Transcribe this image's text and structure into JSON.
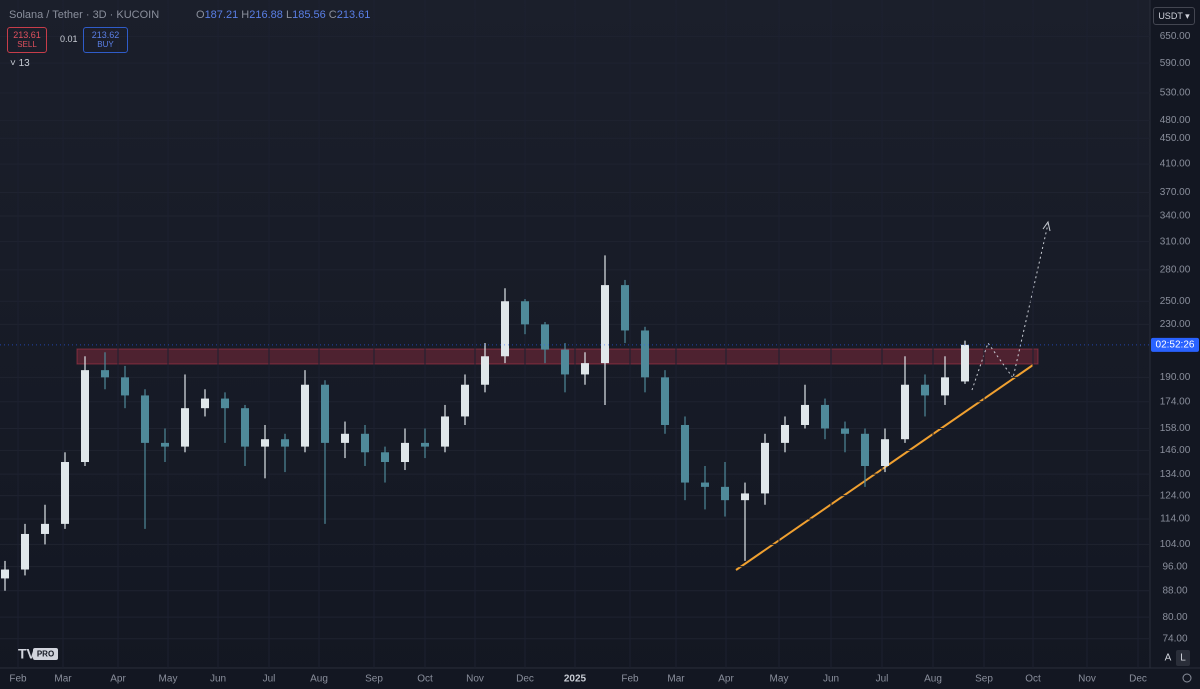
{
  "chart_data": {
    "type": "candlestick",
    "title": "Solana / Tether · 3D · KUCOIN",
    "x": [
      1,
      5,
      9,
      13,
      17,
      21,
      25,
      29,
      33,
      37,
      41,
      45,
      49,
      53,
      57,
      61,
      65,
      69,
      73,
      77,
      81,
      85,
      89,
      93,
      97,
      101,
      105,
      109,
      113,
      117,
      121,
      125,
      129,
      133,
      137,
      141,
      145,
      149,
      153,
      157,
      161,
      165,
      169,
      173,
      177,
      181,
      185,
      189,
      193
    ],
    "open": [
      92,
      95,
      108,
      112,
      140,
      195,
      190,
      178,
      150,
      148,
      170,
      176,
      170,
      148,
      152,
      148,
      185,
      150,
      155,
      145,
      140,
      150,
      148,
      165,
      185,
      205,
      250,
      230,
      210,
      192,
      200,
      265,
      225,
      190,
      160,
      130,
      128,
      122,
      125,
      150,
      160,
      172,
      158,
      155,
      138,
      152,
      185,
      178,
      187.21
    ],
    "high": [
      98,
      112,
      120,
      145,
      205,
      208,
      198,
      182,
      158,
      192,
      182,
      180,
      172,
      160,
      155,
      195,
      188,
      162,
      160,
      148,
      158,
      158,
      172,
      192,
      215,
      262,
      252,
      232,
      215,
      208,
      295,
      270,
      228,
      195,
      165,
      138,
      140,
      130,
      155,
      165,
      185,
      176,
      162,
      158,
      158,
      205,
      192,
      205,
      216.88
    ],
    "low": [
      88,
      93,
      104,
      110,
      138,
      182,
      170,
      110,
      140,
      145,
      165,
      150,
      138,
      132,
      135,
      145,
      112,
      142,
      138,
      130,
      136,
      142,
      145,
      160,
      180,
      200,
      222,
      200,
      180,
      185,
      172,
      215,
      180,
      155,
      122,
      118,
      115,
      98,
      120,
      145,
      158,
      152,
      145,
      128,
      135,
      150,
      165,
      172,
      185.56
    ],
    "close": [
      95,
      108,
      112,
      140,
      195,
      190,
      178,
      150,
      148,
      170,
      176,
      170,
      148,
      152,
      148,
      185,
      150,
      155,
      145,
      140,
      150,
      148,
      165,
      185,
      205,
      250,
      230,
      210,
      192,
      200,
      265,
      225,
      190,
      160,
      130,
      128,
      122,
      125,
      150,
      160,
      172,
      158,
      155,
      138,
      152,
      185,
      178,
      190,
      213.61
    ],
    "up_color": "#dfe6ea",
    "down_color": "#4f8a9a",
    "xlim": [
      0,
      230
    ],
    "xticks": [
      {
        "value": 3.6,
        "label": "Feb"
      },
      {
        "value": 12.6,
        "label": "Mar"
      },
      {
        "value": 23.6,
        "label": "Apr"
      },
      {
        "value": 33.6,
        "label": "May"
      },
      {
        "value": 43.6,
        "label": "Jun"
      },
      {
        "value": 53.8,
        "label": "Jul"
      },
      {
        "value": 63.8,
        "label": "Aug"
      },
      {
        "value": 74.8,
        "label": "Sep"
      },
      {
        "value": 85,
        "label": "Oct"
      },
      {
        "value": 95,
        "label": "Nov"
      },
      {
        "value": 105,
        "label": "Dec"
      },
      {
        "value": 115,
        "label": "2025"
      },
      {
        "value": 126,
        "label": "Feb"
      },
      {
        "value": 135.2,
        "label": "Mar"
      },
      {
        "value": 145.2,
        "label": "Apr"
      },
      {
        "value": 155.8,
        "label": "May"
      },
      {
        "value": 166.2,
        "label": "Jun"
      },
      {
        "value": 176.4,
        "label": "Jul"
      },
      {
        "value": 186.6,
        "label": "Aug"
      },
      {
        "value": 196.8,
        "label": "Sep"
      },
      {
        "value": 206.6,
        "label": "Oct"
      },
      {
        "value": 217.4,
        "label": "Nov"
      },
      {
        "value": 227.6,
        "label": "Dec"
      }
    ],
    "ylim": [
      66.6,
      741
    ],
    "log_scale": true,
    "yticks": [
      {
        "value": 650,
        "label": "650.00"
      },
      {
        "value": 590,
        "label": "590.00"
      },
      {
        "value": 530,
        "label": "530.00"
      },
      {
        "value": 480,
        "label": "480.00"
      },
      {
        "value": 450,
        "label": "450.00"
      },
      {
        "value": 410,
        "label": "410.00"
      },
      {
        "value": 370,
        "label": "370.00"
      },
      {
        "value": 340,
        "label": "340.00"
      },
      {
        "value": 310,
        "label": "310.00"
      },
      {
        "value": 280,
        "label": "280.00"
      },
      {
        "value": 250,
        "label": "250.00"
      },
      {
        "value": 230,
        "label": "230.00"
      },
      {
        "value": 190,
        "label": "190.00"
      },
      {
        "value": 174,
        "label": "174.00"
      },
      {
        "value": 158,
        "label": "158.00"
      },
      {
        "value": 146,
        "label": "146.00"
      },
      {
        "value": 134,
        "label": "134.00"
      },
      {
        "value": 124,
        "label": "124.00"
      },
      {
        "value": 114,
        "label": "114.00"
      },
      {
        "value": 104,
        "label": "104.00"
      },
      {
        "value": 96,
        "label": "96.00"
      },
      {
        "value": 88,
        "label": "88.00"
      },
      {
        "value": 80,
        "label": "80.00"
      },
      {
        "value": 74,
        "label": "74.00"
      }
    ]
  },
  "ui": {
    "o": "O",
    "o_value": "187.21",
    "h": "H",
    "h_value": "216.88",
    "l": "L",
    "l_value": "185.56",
    "c": "C",
    "c_value": "213.61",
    "sell_price": "213.61",
    "sell": "SELL",
    "spread": "0.01",
    "buy_price": "213.62",
    "buy": "BUY",
    "indicators": "13",
    "currency": "USDT",
    "countdown": "02:52:26",
    "auto": "A",
    "log": "L",
    "logo_badge": "PRO"
  }
}
